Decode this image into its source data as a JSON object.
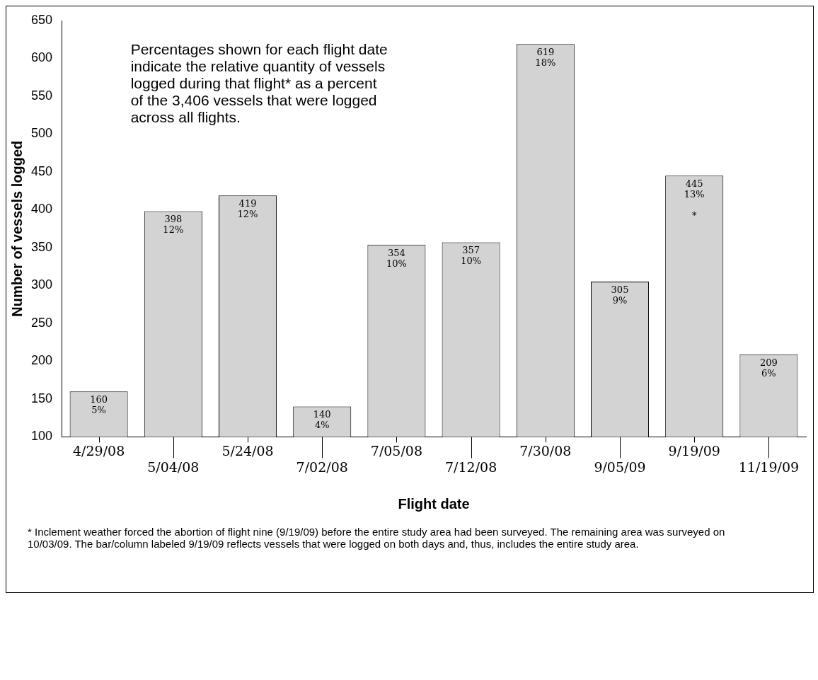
{
  "chart_data": {
    "type": "bar",
    "xlabel": "Flight date",
    "ylabel": "Number of vessels logged",
    "categories": [
      "4/29/08",
      "5/04/08",
      "5/24/08",
      "7/02/08",
      "7/05/08",
      "7/12/08",
      "7/30/08",
      "9/05/09",
      "9/19/09",
      "11/19/09"
    ],
    "values": [
      160,
      398,
      419,
      140,
      354,
      357,
      619,
      305,
      445,
      209
    ],
    "value_labels": [
      "160\n5%",
      "398\n12%",
      "419\n12%",
      "140\n4%",
      "354\n10%",
      "357\n10%",
      "619\n18%",
      "305\n9%",
      "445\n13%\n\n*",
      "209\n6%"
    ],
    "color": "#d3d3d3",
    "ylim": [
      100,
      650
    ],
    "yticks": [
      100,
      150,
      200,
      250,
      300,
      350,
      400,
      450,
      500,
      550,
      600,
      650
    ],
    "grid": false,
    "legend": false,
    "annotations": [
      "Percentages shown for each flight date\nindicate the relative quantity of vessels\nlogged during that flight* as a percent\nof the 3,406 vessels that were logged\nacross all flights.",
      "* Inclement weather forced the abortion of flight nine (9/19/09) before the entire study area had been surveyed. The remaining area was surveyed on 10/03/09. The bar/column labeled 9/19/09 reflects vessels that were logged on both days and, thus, includes the entire study area."
    ]
  }
}
